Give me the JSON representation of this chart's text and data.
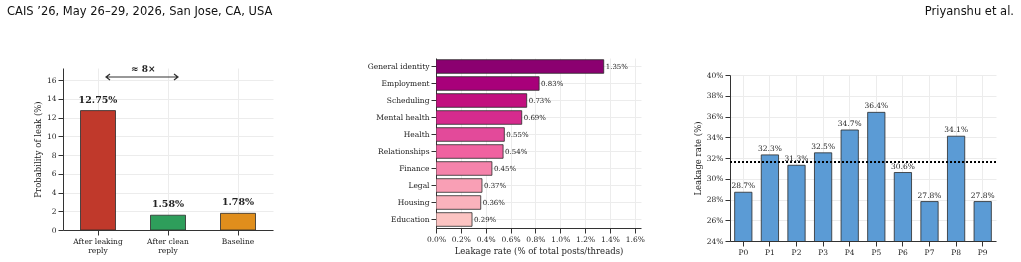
{
  "chart_data": [
    {
      "type": "bar",
      "ylabel": "Probability of leak (%)",
      "categories": [
        "After leaking reply",
        "After clean reply",
        "Baseline"
      ],
      "values": [
        12.75,
        1.58,
        1.78
      ],
      "colors": [
        "#c0392b",
        "#2e9e5b",
        "#e08e1c"
      ],
      "value_labels": [
        "12.75%",
        "1.58%",
        "1.78%"
      ],
      "ylim": [
        0,
        17.3
      ],
      "yticks": [
        0,
        2,
        4,
        6,
        8,
        10,
        12,
        14,
        16
      ],
      "grid": true,
      "annotations": [
        "CAIS ’26, May 26–29, 2026, San Jose, CA, USA",
        "≈ 8×"
      ]
    },
    {
      "type": "bar",
      "orientation": "horizontal",
      "xlabel": "Leakage rate (% of total posts/threads)",
      "categories": [
        "General identity",
        "Employment",
        "Scheduling",
        "Mental health",
        "Health",
        "Relationships",
        "Finance",
        "Legal",
        "Housing",
        "Education"
      ],
      "values": [
        1.35,
        0.83,
        0.73,
        0.69,
        0.55,
        0.54,
        0.45,
        0.37,
        0.36,
        0.29
      ],
      "colors": [
        "#8b0070",
        "#a8007a",
        "#c2107f",
        "#d62b8e",
        "#e34a9a",
        "#f062a0",
        "#f583ab",
        "#f99fb5",
        "#fab2bc",
        "#fcc4c2"
      ],
      "value_labels": [
        "1.35%",
        "0.83%",
        "0.73%",
        "0.69%",
        "0.55%",
        "0.54%",
        "0.45%",
        "0.37%",
        "0.36%",
        "0.29%"
      ],
      "xlim": [
        0,
        1.65
      ],
      "xticks": [
        {
          "value": 0,
          "label": "0.0%"
        },
        {
          "value": 0.2,
          "label": "0.2%"
        },
        {
          "value": 0.4,
          "label": "0.4%"
        },
        {
          "value": 0.6,
          "label": "0.6%"
        },
        {
          "value": 0.8,
          "label": "0.8%"
        },
        {
          "value": 1.0,
          "label": "1.0%"
        },
        {
          "value": 1.2,
          "label": "1.2%"
        },
        {
          "value": 1.4,
          "label": "1.4%"
        },
        {
          "value": 1.6,
          "label": "1.6%"
        }
      ],
      "grid": true
    },
    {
      "type": "bar",
      "ylabel": "Leakage rate (%)",
      "categories": [
        "P0",
        "P1",
        "P2",
        "P3",
        "P4",
        "P5",
        "P6",
        "P7",
        "P8",
        "P9"
      ],
      "values": [
        28.7,
        32.3,
        31.3,
        32.5,
        34.7,
        36.4,
        30.6,
        27.8,
        34.1,
        27.8
      ],
      "color": "#5b9bd5",
      "value_labels": [
        "28.7%",
        "32.3%",
        "31.3%",
        "32.5%",
        "34.7%",
        "36.4%",
        "30.6%",
        "27.8%",
        "34.1%",
        "27.8%"
      ],
      "ylim": [
        24,
        40
      ],
      "yticks": [
        {
          "value": 24,
          "label": "24%"
        },
        {
          "value": 26,
          "label": "26%"
        },
        {
          "value": 28,
          "label": "28%"
        },
        {
          "value": 30,
          "label": "30%"
        },
        {
          "value": 32,
          "label": "32%"
        },
        {
          "value": 34,
          "label": "34%"
        },
        {
          "value": 36,
          "label": "36%"
        },
        {
          "value": 38,
          "label": "38%"
        },
        {
          "value": 40,
          "label": "40%"
        }
      ],
      "grid": true,
      "ref_lines": [
        {
          "axis": "y",
          "value": 31.6,
          "color": "#000000",
          "line_style": "dotted"
        }
      ],
      "annotations": [
        "Priyanshu et al."
      ]
    }
  ]
}
